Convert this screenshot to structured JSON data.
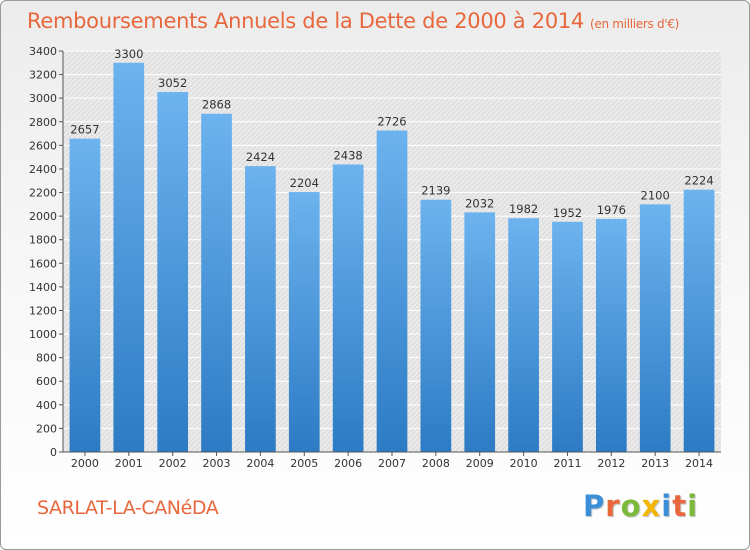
{
  "header": {
    "title": "Remboursements Annuels de la Dette de 2000 à 2014",
    "unit_note": "(en milliers d'€)"
  },
  "footer": {
    "commune": "SARLAT-LA-CANéDA"
  },
  "brand": {
    "logo_letters": [
      "P",
      "r",
      "o",
      "x",
      "i",
      "t",
      "i"
    ],
    "logo_colors": [
      "#3b8ed8",
      "#e8673c",
      "#7bb93a",
      "#f2b705",
      "#3b8ed8",
      "#e8673c",
      "#7bb93a"
    ],
    "accent_color": "#e8673c"
  },
  "chart_data": {
    "type": "bar",
    "categories": [
      "2000",
      "2001",
      "2002",
      "2003",
      "2004",
      "2005",
      "2006",
      "2007",
      "2008",
      "2009",
      "2010",
      "2011",
      "2012",
      "2013",
      "2014"
    ],
    "values": [
      2657,
      3300,
      3052,
      2868,
      2424,
      2204,
      2438,
      2726,
      2139,
      2032,
      1982,
      1952,
      1976,
      2100,
      2224
    ],
    "title": "Remboursements Annuels de la Dette de 2000 à 2014",
    "ylim": [
      0,
      3400
    ],
    "yticks": [
      0,
      200,
      400,
      600,
      800,
      1000,
      1200,
      1400,
      1600,
      1800,
      2000,
      2200,
      2400,
      2600,
      2800,
      3000,
      3200,
      3400
    ],
    "grid": true,
    "bar_color_top": "#6cb3ef",
    "bar_color_bottom": "#2c7bc4"
  }
}
